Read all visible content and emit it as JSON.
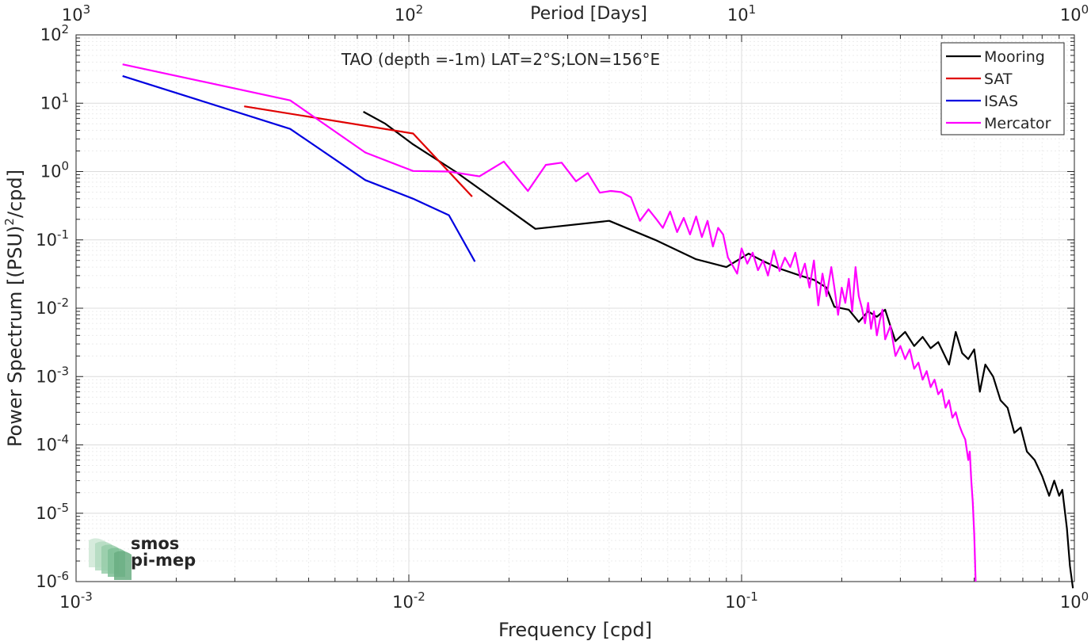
{
  "chart_data": {
    "type": "line",
    "title": "TAO (depth =-1m) LAT=2°S;LON=156°E",
    "xlabel": "Frequency [cpd]",
    "ylabel": "Power Spectrum [(PSU)",
    "ylabel_sup": "2",
    "ylabel_tail": "/cpd]",
    "top_xlabel": "Period [Days]",
    "x_scale": "log",
    "y_scale": "log",
    "xlim": [
      0.001,
      1
    ],
    "ylim": [
      1e-06,
      100
    ],
    "grid": true,
    "legend_position": "top-right",
    "x_ticks": [
      {
        "base": "10",
        "exp": "-3"
      },
      {
        "base": "10",
        "exp": "-2"
      },
      {
        "base": "10",
        "exp": "-1"
      },
      {
        "base": "10",
        "exp": "0"
      }
    ],
    "top_ticks": [
      {
        "base": "10",
        "exp": "3"
      },
      {
        "base": "10",
        "exp": "2"
      },
      {
        "base": "10",
        "exp": "1"
      },
      {
        "base": "10",
        "exp": "0"
      }
    ],
    "y_ticks": [
      {
        "base": "10",
        "exp": "-6"
      },
      {
        "base": "10",
        "exp": "-5"
      },
      {
        "base": "10",
        "exp": "-4"
      },
      {
        "base": "10",
        "exp": "-3"
      },
      {
        "base": "10",
        "exp": "-2"
      },
      {
        "base": "10",
        "exp": "-1"
      },
      {
        "base": "10",
        "exp": "0"
      },
      {
        "base": "10",
        "exp": "1"
      },
      {
        "base": "10",
        "exp": "2"
      }
    ],
    "series": [
      {
        "name": "Mooring",
        "color": "#000000",
        "points": [
          [
            0.0073,
            7.5
          ],
          [
            0.0085,
            5.0
          ],
          [
            0.0103,
            2.5
          ],
          [
            0.0138,
            1.0
          ],
          [
            0.024,
            0.145
          ],
          [
            0.04,
            0.19
          ],
          [
            0.055,
            0.1
          ],
          [
            0.073,
            0.052
          ],
          [
            0.09,
            0.04
          ],
          [
            0.105,
            0.063
          ],
          [
            0.115,
            0.05
          ],
          [
            0.13,
            0.038
          ],
          [
            0.15,
            0.03
          ],
          [
            0.165,
            0.026
          ],
          [
            0.18,
            0.02
          ],
          [
            0.19,
            0.0105
          ],
          [
            0.21,
            0.0095
          ],
          [
            0.225,
            0.0063
          ],
          [
            0.24,
            0.009
          ],
          [
            0.255,
            0.0075
          ],
          [
            0.27,
            0.0095
          ],
          [
            0.28,
            0.0055
          ],
          [
            0.29,
            0.0033
          ],
          [
            0.31,
            0.0045
          ],
          [
            0.33,
            0.0028
          ],
          [
            0.35,
            0.0038
          ],
          [
            0.37,
            0.0026
          ],
          [
            0.39,
            0.0032
          ],
          [
            0.42,
            0.0015
          ],
          [
            0.44,
            0.0045
          ],
          [
            0.46,
            0.0022
          ],
          [
            0.48,
            0.0018
          ],
          [
            0.5,
            0.0025
          ],
          [
            0.52,
            0.0006
          ],
          [
            0.54,
            0.0015
          ],
          [
            0.57,
            0.001
          ],
          [
            0.6,
            0.00045
          ],
          [
            0.63,
            0.00035
          ],
          [
            0.66,
            0.00015
          ],
          [
            0.69,
            0.00018
          ],
          [
            0.72,
            8e-05
          ],
          [
            0.76,
            6e-05
          ],
          [
            0.8,
            3.5e-05
          ],
          [
            0.84,
            1.8e-05
          ],
          [
            0.87,
            3e-05
          ],
          [
            0.9,
            1.8e-05
          ],
          [
            0.92,
            2.2e-05
          ],
          [
            0.95,
            6e-06
          ],
          [
            0.97,
            1.7e-06
          ],
          [
            0.99,
            8e-07
          ]
        ]
      },
      {
        "name": "SAT",
        "color": "#e00000",
        "points": [
          [
            0.0032,
            9.0
          ],
          [
            0.0103,
            3.6
          ],
          [
            0.0155,
            0.43
          ]
        ]
      },
      {
        "name": "ISAS",
        "color": "#0000e0",
        "points": [
          [
            0.00138,
            25.0
          ],
          [
            0.0044,
            4.2
          ],
          [
            0.0074,
            0.75
          ],
          [
            0.0103,
            0.4
          ],
          [
            0.0132,
            0.23
          ],
          [
            0.0158,
            0.048
          ]
        ]
      },
      {
        "name": "Mercator",
        "color": "#ff00ff",
        "points": [
          [
            0.00138,
            37.0
          ],
          [
            0.0044,
            11.0
          ],
          [
            0.0074,
            1.9
          ],
          [
            0.0103,
            1.02
          ],
          [
            0.0132,
            1.0
          ],
          [
            0.0163,
            0.85
          ],
          [
            0.0193,
            1.4
          ],
          [
            0.0228,
            0.52
          ],
          [
            0.0258,
            1.25
          ],
          [
            0.0288,
            1.35
          ],
          [
            0.0318,
            0.72
          ],
          [
            0.0345,
            0.95
          ],
          [
            0.0375,
            0.49
          ],
          [
            0.0405,
            0.52
          ],
          [
            0.0435,
            0.5
          ],
          [
            0.0465,
            0.42
          ],
          [
            0.0495,
            0.19
          ],
          [
            0.0525,
            0.28
          ],
          [
            0.0555,
            0.2
          ],
          [
            0.058,
            0.15
          ],
          [
            0.061,
            0.26
          ],
          [
            0.064,
            0.13
          ],
          [
            0.067,
            0.21
          ],
          [
            0.07,
            0.12
          ],
          [
            0.073,
            0.22
          ],
          [
            0.076,
            0.11
          ],
          [
            0.079,
            0.19
          ],
          [
            0.082,
            0.08
          ],
          [
            0.085,
            0.15
          ],
          [
            0.088,
            0.12
          ],
          [
            0.091,
            0.055
          ],
          [
            0.094,
            0.042
          ],
          [
            0.097,
            0.032
          ],
          [
            0.1,
            0.075
          ],
          [
            0.104,
            0.045
          ],
          [
            0.108,
            0.065
          ],
          [
            0.112,
            0.036
          ],
          [
            0.116,
            0.05
          ],
          [
            0.12,
            0.03
          ],
          [
            0.125,
            0.07
          ],
          [
            0.13,
            0.035
          ],
          [
            0.135,
            0.055
          ],
          [
            0.14,
            0.04
          ],
          [
            0.145,
            0.065
          ],
          [
            0.15,
            0.028
          ],
          [
            0.155,
            0.045
          ],
          [
            0.16,
            0.02
          ],
          [
            0.165,
            0.05
          ],
          [
            0.17,
            0.011
          ],
          [
            0.175,
            0.032
          ],
          [
            0.18,
            0.015
          ],
          [
            0.186,
            0.04
          ],
          [
            0.19,
            0.02
          ],
          [
            0.195,
            0.008
          ],
          [
            0.2,
            0.02
          ],
          [
            0.205,
            0.012
          ],
          [
            0.21,
            0.027
          ],
          [
            0.215,
            0.009
          ],
          [
            0.22,
            0.04
          ],
          [
            0.225,
            0.015
          ],
          [
            0.23,
            0.01
          ],
          [
            0.235,
            0.006
          ],
          [
            0.24,
            0.012
          ],
          [
            0.245,
            0.005
          ],
          [
            0.25,
            0.009
          ],
          [
            0.255,
            0.004
          ],
          [
            0.26,
            0.0065
          ],
          [
            0.265,
            0.0095
          ],
          [
            0.27,
            0.0035
          ],
          [
            0.28,
            0.0055
          ],
          [
            0.29,
            0.002
          ],
          [
            0.3,
            0.0028
          ],
          [
            0.31,
            0.0018
          ],
          [
            0.32,
            0.0025
          ],
          [
            0.33,
            0.0013
          ],
          [
            0.34,
            0.0016
          ],
          [
            0.35,
            0.0009
          ],
          [
            0.36,
            0.0012
          ],
          [
            0.37,
            0.0007
          ],
          [
            0.38,
            0.0009
          ],
          [
            0.39,
            0.00055
          ],
          [
            0.4,
            0.00065
          ],
          [
            0.41,
            0.00035
          ],
          [
            0.42,
            0.00045
          ],
          [
            0.43,
            0.00025
          ],
          [
            0.44,
            0.0003
          ],
          [
            0.45,
            0.0002
          ],
          [
            0.46,
            0.00015
          ],
          [
            0.47,
            0.00012
          ],
          [
            0.48,
            6e-05
          ],
          [
            0.485,
            8e-05
          ],
          [
            0.49,
            3e-05
          ],
          [
            0.495,
            1.5e-05
          ],
          [
            0.5,
            5e-06
          ],
          [
            0.505,
            1e-06
          ]
        ]
      }
    ]
  },
  "watermark": {
    "line1": "smos",
    "line2": "pi-mep",
    "color": "#7fbf96"
  }
}
